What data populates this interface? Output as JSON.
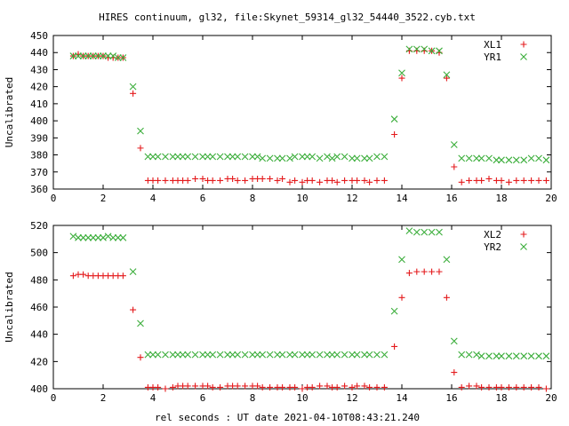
{
  "title": "HIRES continuum, gl32, file:Skynet_59314_gl32_54440_3522.cyb.txt",
  "xlabel": "rel seconds : UT date 2021-04-10T08:43:21.240",
  "colors": {
    "red": "#e41a1c",
    "green": "#3cae3c",
    "axis": "#000000",
    "bg": "#ffffff"
  },
  "chart_data": [
    {
      "type": "scatter",
      "ylabel": "Uncalibrated",
      "xlim": [
        0,
        20
      ],
      "ylim": [
        360,
        450
      ],
      "xticks": [
        0,
        2,
        4,
        6,
        8,
        10,
        12,
        14,
        16,
        18,
        20
      ],
      "yticks": [
        360,
        370,
        380,
        390,
        400,
        410,
        420,
        430,
        440,
        450
      ],
      "legend": "top-right",
      "grid": false,
      "x": [
        0.8,
        1.0,
        1.2,
        1.4,
        1.6,
        1.8,
        2.0,
        2.2,
        2.4,
        2.6,
        2.8,
        3.2,
        3.5,
        3.8,
        4.0,
        4.2,
        4.5,
        4.8,
        5.0,
        5.2,
        5.4,
        5.7,
        6.0,
        6.2,
        6.4,
        6.7,
        7.0,
        7.2,
        7.4,
        7.7,
        8.0,
        8.2,
        8.4,
        8.7,
        9.0,
        9.2,
        9.5,
        9.7,
        10.0,
        10.2,
        10.4,
        10.7,
        11.0,
        11.2,
        11.4,
        11.7,
        12.0,
        12.2,
        12.5,
        12.7,
        13.0,
        13.3,
        13.7,
        14.0,
        14.3,
        14.6,
        14.9,
        15.2,
        15.5,
        15.8,
        16.1,
        16.4,
        16.7,
        17.0,
        17.2,
        17.5,
        17.8,
        18.0,
        18.3,
        18.6,
        18.9,
        19.2,
        19.5,
        19.8
      ],
      "series": [
        {
          "name": "XL1",
          "color": "red",
          "marker": "plus",
          "values": [
            438,
            439,
            438,
            438,
            438,
            438,
            438,
            437,
            437,
            437,
            437,
            416,
            384,
            365,
            365,
            365,
            365,
            365,
            365,
            365,
            365,
            366,
            366,
            365,
            365,
            365,
            366,
            366,
            365,
            365,
            366,
            366,
            366,
            366,
            365,
            366,
            364,
            365,
            364,
            365,
            365,
            364,
            365,
            365,
            364,
            365,
            365,
            365,
            365,
            364,
            365,
            365,
            392,
            425,
            441,
            441,
            441,
            441,
            440,
            425,
            373,
            364,
            365,
            365,
            365,
            366,
            365,
            365,
            364,
            365,
            365,
            365,
            365,
            365
          ]
        },
        {
          "name": "YR1",
          "color": "green",
          "marker": "cross",
          "values": [
            438,
            438,
            438,
            438,
            438,
            438,
            438,
            438,
            438,
            437,
            437,
            420,
            394,
            379,
            379,
            379,
            379,
            379,
            379,
            379,
            379,
            379,
            379,
            379,
            379,
            379,
            379,
            379,
            379,
            379,
            379,
            379,
            378,
            378,
            378,
            378,
            378,
            379,
            379,
            379,
            379,
            378,
            379,
            378,
            379,
            379,
            378,
            378,
            378,
            378,
            379,
            379,
            401,
            428,
            442,
            442,
            442,
            441,
            441,
            427,
            386,
            378,
            378,
            378,
            378,
            378,
            377,
            377,
            377,
            377,
            377,
            378,
            378,
            377
          ]
        }
      ]
    },
    {
      "type": "scatter",
      "ylabel": "Uncalibrated",
      "xlim": [
        0,
        20
      ],
      "ylim": [
        400,
        520
      ],
      "xticks": [
        0,
        2,
        4,
        6,
        8,
        10,
        12,
        14,
        16,
        18,
        20
      ],
      "yticks": [
        400,
        420,
        440,
        460,
        480,
        500,
        520
      ],
      "legend": "top-right",
      "grid": false,
      "x": [
        0.8,
        1.0,
        1.2,
        1.4,
        1.6,
        1.8,
        2.0,
        2.2,
        2.4,
        2.6,
        2.8,
        3.2,
        3.5,
        3.8,
        4.0,
        4.2,
        4.5,
        4.8,
        5.0,
        5.2,
        5.4,
        5.7,
        6.0,
        6.2,
        6.4,
        6.7,
        7.0,
        7.2,
        7.4,
        7.7,
        8.0,
        8.2,
        8.4,
        8.7,
        9.0,
        9.2,
        9.5,
        9.7,
        10.0,
        10.2,
        10.4,
        10.7,
        11.0,
        11.2,
        11.4,
        11.7,
        12.0,
        12.2,
        12.5,
        12.7,
        13.0,
        13.3,
        13.7,
        14.0,
        14.3,
        14.6,
        14.9,
        15.2,
        15.5,
        15.8,
        16.1,
        16.4,
        16.7,
        17.0,
        17.2,
        17.5,
        17.8,
        18.0,
        18.3,
        18.6,
        18.9,
        19.2,
        19.5,
        19.8
      ],
      "series": [
        {
          "name": "XL2",
          "color": "red",
          "marker": "plus",
          "values": [
            483,
            484,
            484,
            483,
            483,
            483,
            483,
            483,
            483,
            483,
            483,
            458,
            423,
            401,
            401,
            401,
            400,
            401,
            402,
            402,
            402,
            402,
            402,
            402,
            401,
            401,
            402,
            402,
            402,
            402,
            402,
            402,
            401,
            401,
            401,
            401,
            401,
            401,
            400,
            401,
            401,
            402,
            402,
            401,
            401,
            402,
            401,
            402,
            402,
            401,
            401,
            401,
            431,
            467,
            485,
            486,
            486,
            486,
            486,
            467,
            412,
            401,
            402,
            402,
            401,
            401,
            401,
            401,
            401,
            401,
            401,
            401,
            401,
            400
          ]
        },
        {
          "name": "YR2",
          "color": "green",
          "marker": "cross",
          "values": [
            512,
            511,
            511,
            511,
            511,
            511,
            511,
            512,
            511,
            511,
            511,
            486,
            448,
            425,
            425,
            425,
            425,
            425,
            425,
            425,
            425,
            425,
            425,
            425,
            425,
            425,
            425,
            425,
            425,
            425,
            425,
            425,
            425,
            425,
            425,
            425,
            425,
            425,
            425,
            425,
            425,
            425,
            425,
            425,
            425,
            425,
            425,
            425,
            425,
            425,
            425,
            425,
            457,
            495,
            516,
            515,
            515,
            515,
            515,
            495,
            435,
            425,
            425,
            425,
            424,
            424,
            424,
            424,
            424,
            424,
            424,
            424,
            424,
            424
          ]
        }
      ]
    }
  ]
}
